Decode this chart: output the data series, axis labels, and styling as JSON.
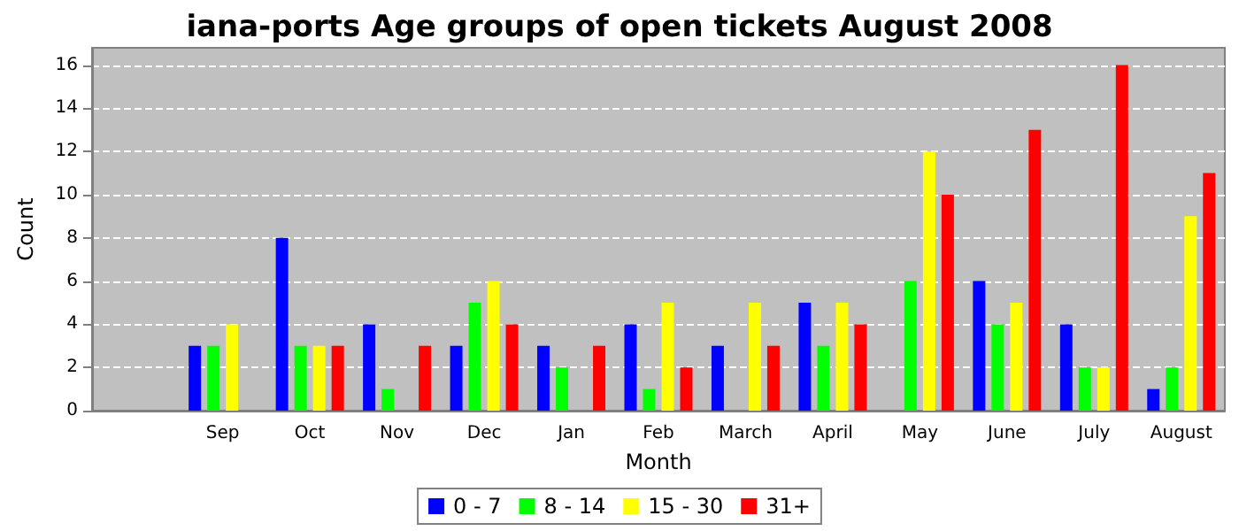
{
  "chart_data": {
    "type": "bar",
    "title": "iana-ports Age groups of open tickets August 2008",
    "xlabel": "Month",
    "ylabel": "Count",
    "categories": [
      null,
      "Sep",
      "Oct",
      "Nov",
      "Dec",
      "Jan",
      "Feb",
      "March",
      "April",
      "May",
      "June",
      "July",
      "August"
    ],
    "series": [
      {
        "name": "0 - 7",
        "color": "#0000ff",
        "values": [
          null,
          3,
          8,
          4,
          3,
          3,
          4,
          3,
          5,
          0,
          6,
          4,
          1
        ]
      },
      {
        "name": "8 - 14",
        "color": "#00ff00",
        "values": [
          null,
          3,
          3,
          1,
          5,
          2,
          1,
          0,
          3,
          6,
          4,
          2,
          2
        ]
      },
      {
        "name": "15 - 30",
        "color": "#ffff00",
        "values": [
          null,
          4,
          3,
          0,
          6,
          0,
          5,
          5,
          5,
          12,
          5,
          2,
          9
        ]
      },
      {
        "name": "31+",
        "color": "#ff0000",
        "values": [
          null,
          0,
          3,
          3,
          4,
          3,
          2,
          3,
          4,
          10,
          13,
          16,
          11
        ]
      }
    ],
    "ylim": [
      0,
      16.8
    ],
    "yticks": [
      0,
      2,
      4,
      6,
      8,
      10,
      12,
      14,
      16
    ],
    "grid": "y",
    "legend": "bottom"
  }
}
